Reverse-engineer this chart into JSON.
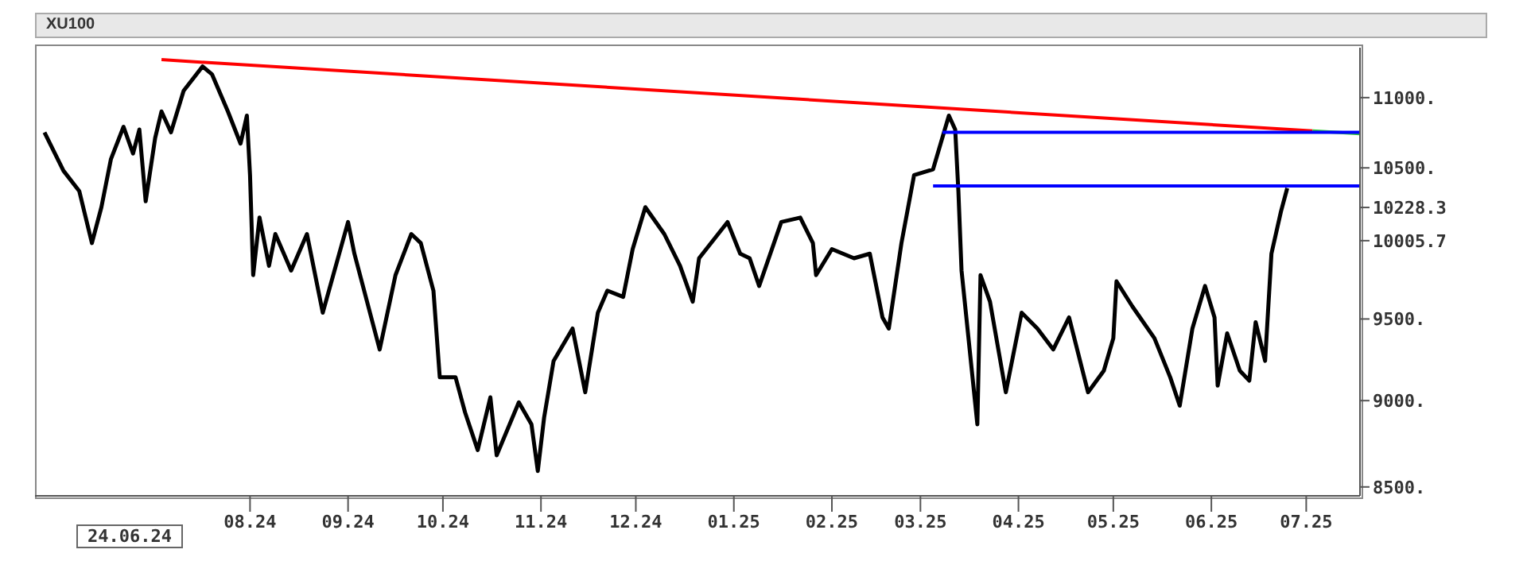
{
  "chart_data": {
    "type": "line",
    "title": "XU100",
    "log": "y",
    "ylim": [
      8450,
      11370
    ],
    "yticks": [
      {
        "value": 8500,
        "label": "8500."
      },
      {
        "value": 9000,
        "label": "9000."
      },
      {
        "value": 9500,
        "label": "9500."
      },
      {
        "value": 10005.7,
        "label": "10005.7"
      },
      {
        "value": 10228.3,
        "label": "10228.3"
      },
      {
        "value": 10500,
        "label": "10500."
      },
      {
        "value": 11000,
        "label": "11000."
      }
    ],
    "xlim": [
      "2024-05-25",
      "2025-07-18"
    ],
    "xticks": [
      {
        "value": "2024-08-01",
        "label": "08.24"
      },
      {
        "value": "2024-09-01",
        "label": "09.24"
      },
      {
        "value": "2024-10-01",
        "label": "10.24"
      },
      {
        "value": "2024-11-01",
        "label": "11.24"
      },
      {
        "value": "2024-12-01",
        "label": "12.24"
      },
      {
        "value": "2025-01-01",
        "label": "01.25"
      },
      {
        "value": "2025-02-01",
        "label": "02.25"
      },
      {
        "value": "2025-03-01",
        "label": "03.25"
      },
      {
        "value": "2025-04-01",
        "label": "04.25"
      },
      {
        "value": "2025-05-01",
        "label": "05.25"
      },
      {
        "value": "2025-06-01",
        "label": "06.25"
      },
      {
        "value": "2025-07-01",
        "label": "07.25"
      }
    ],
    "annotations": [
      "24.06.24"
    ],
    "series": [
      {
        "color": "#000000",
        "x": [
          "2024-05-28",
          "2024-06-03",
          "2024-06-08",
          "2024-06-12",
          "2024-06-15",
          "2024-06-18",
          "2024-06-22",
          "2024-06-25",
          "2024-06-27",
          "2024-06-29",
          "2024-07-02",
          "2024-07-04",
          "2024-07-07",
          "2024-07-11",
          "2024-07-17",
          "2024-07-20",
          "2024-07-25",
          "2024-07-29",
          "2024-07-31",
          "2024-08-01",
          "2024-08-02",
          "2024-08-04",
          "2024-08-07",
          "2024-08-09",
          "2024-08-14",
          "2024-08-19",
          "2024-08-24",
          "2024-09-01",
          "2024-09-03",
          "2024-09-11",
          "2024-09-16",
          "2024-09-21",
          "2024-09-24",
          "2024-09-28",
          "2024-09-30",
          "2024-10-05",
          "2024-10-08",
          "2024-10-12",
          "2024-10-16",
          "2024-10-18",
          "2024-10-25",
          "2024-10-29",
          "2024-10-31",
          "2024-11-02",
          "2024-11-05",
          "2024-11-11",
          "2024-11-15",
          "2024-11-19",
          "2024-11-22",
          "2024-11-27",
          "2024-11-30",
          "2024-12-04",
          "2024-12-10",
          "2024-12-15",
          "2024-12-19",
          "2024-12-21",
          "2024-12-30",
          "2025-01-03",
          "2025-01-06",
          "2025-01-09",
          "2025-01-16",
          "2025-01-22",
          "2025-01-26",
          "2025-01-27",
          "2025-02-01",
          "2025-02-08",
          "2025-02-13",
          "2025-02-17",
          "2025-02-19",
          "2025-02-23",
          "2025-02-27",
          "2025-03-05",
          "2025-03-10",
          "2025-03-12",
          "2025-03-13",
          "2025-03-14",
          "2025-03-19",
          "2025-03-20",
          "2025-03-23",
          "2025-03-28",
          "2025-04-02",
          "2025-04-07",
          "2025-04-12",
          "2025-04-17",
          "2025-04-23",
          "2025-04-28",
          "2025-05-01",
          "2025-05-02",
          "2025-05-07",
          "2025-05-14",
          "2025-05-19",
          "2025-05-22",
          "2025-05-26",
          "2025-05-30",
          "2025-06-02",
          "2025-06-03",
          "2025-06-06",
          "2025-06-10",
          "2025-06-13",
          "2025-06-15",
          "2025-06-18",
          "2025-06-20",
          "2025-06-23",
          "2025-06-25"
        ],
        "values": [
          10750,
          10480,
          10340,
          9990,
          10230,
          10560,
          10790,
          10600,
          10770,
          10270,
          10710,
          10900,
          10750,
          11050,
          11230,
          11170,
          10900,
          10670,
          10870,
          10450,
          9780,
          10160,
          9840,
          10050,
          9810,
          10050,
          9540,
          10130,
          9920,
          9310,
          9780,
          10050,
          9990,
          9680,
          9140,
          9140,
          8930,
          8710,
          9020,
          8680,
          8990,
          8860,
          8590,
          8900,
          9240,
          9440,
          9050,
          9540,
          9680,
          9640,
          9950,
          10230,
          10050,
          9840,
          9610,
          9890,
          10130,
          9920,
          9890,
          9710,
          10130,
          10160,
          9990,
          9780,
          9950,
          9890,
          9920,
          9510,
          9440,
          9990,
          10450,
          10490,
          10870,
          10770,
          10340,
          9810,
          8860,
          9780,
          9610,
          9050,
          9540,
          9440,
          9310,
          9510,
          9050,
          9180,
          9380,
          9740,
          9580,
          9380,
          9140,
          8970,
          9440,
          9710,
          9510,
          9090,
          9410,
          9180,
          9120,
          9480,
          9240,
          9920,
          10200,
          10360
        ]
      },
      {
        "color": "#ff0000",
        "x": [
          "2024-07-04",
          "2025-07-03"
        ],
        "values": [
          11280,
          10760
        ]
      },
      {
        "color": "#33cc33",
        "x": [
          "2025-07-03",
          "2025-07-18"
        ],
        "values": [
          10760,
          10740
        ]
      },
      {
        "color": "#0000ff",
        "x": [
          "2025-03-08",
          "2025-07-18"
        ],
        "values": [
          10750,
          10750
        ]
      },
      {
        "color": "#0000ff",
        "x": [
          "2025-03-05",
          "2025-07-18"
        ],
        "values": [
          10375,
          10375
        ]
      }
    ]
  }
}
